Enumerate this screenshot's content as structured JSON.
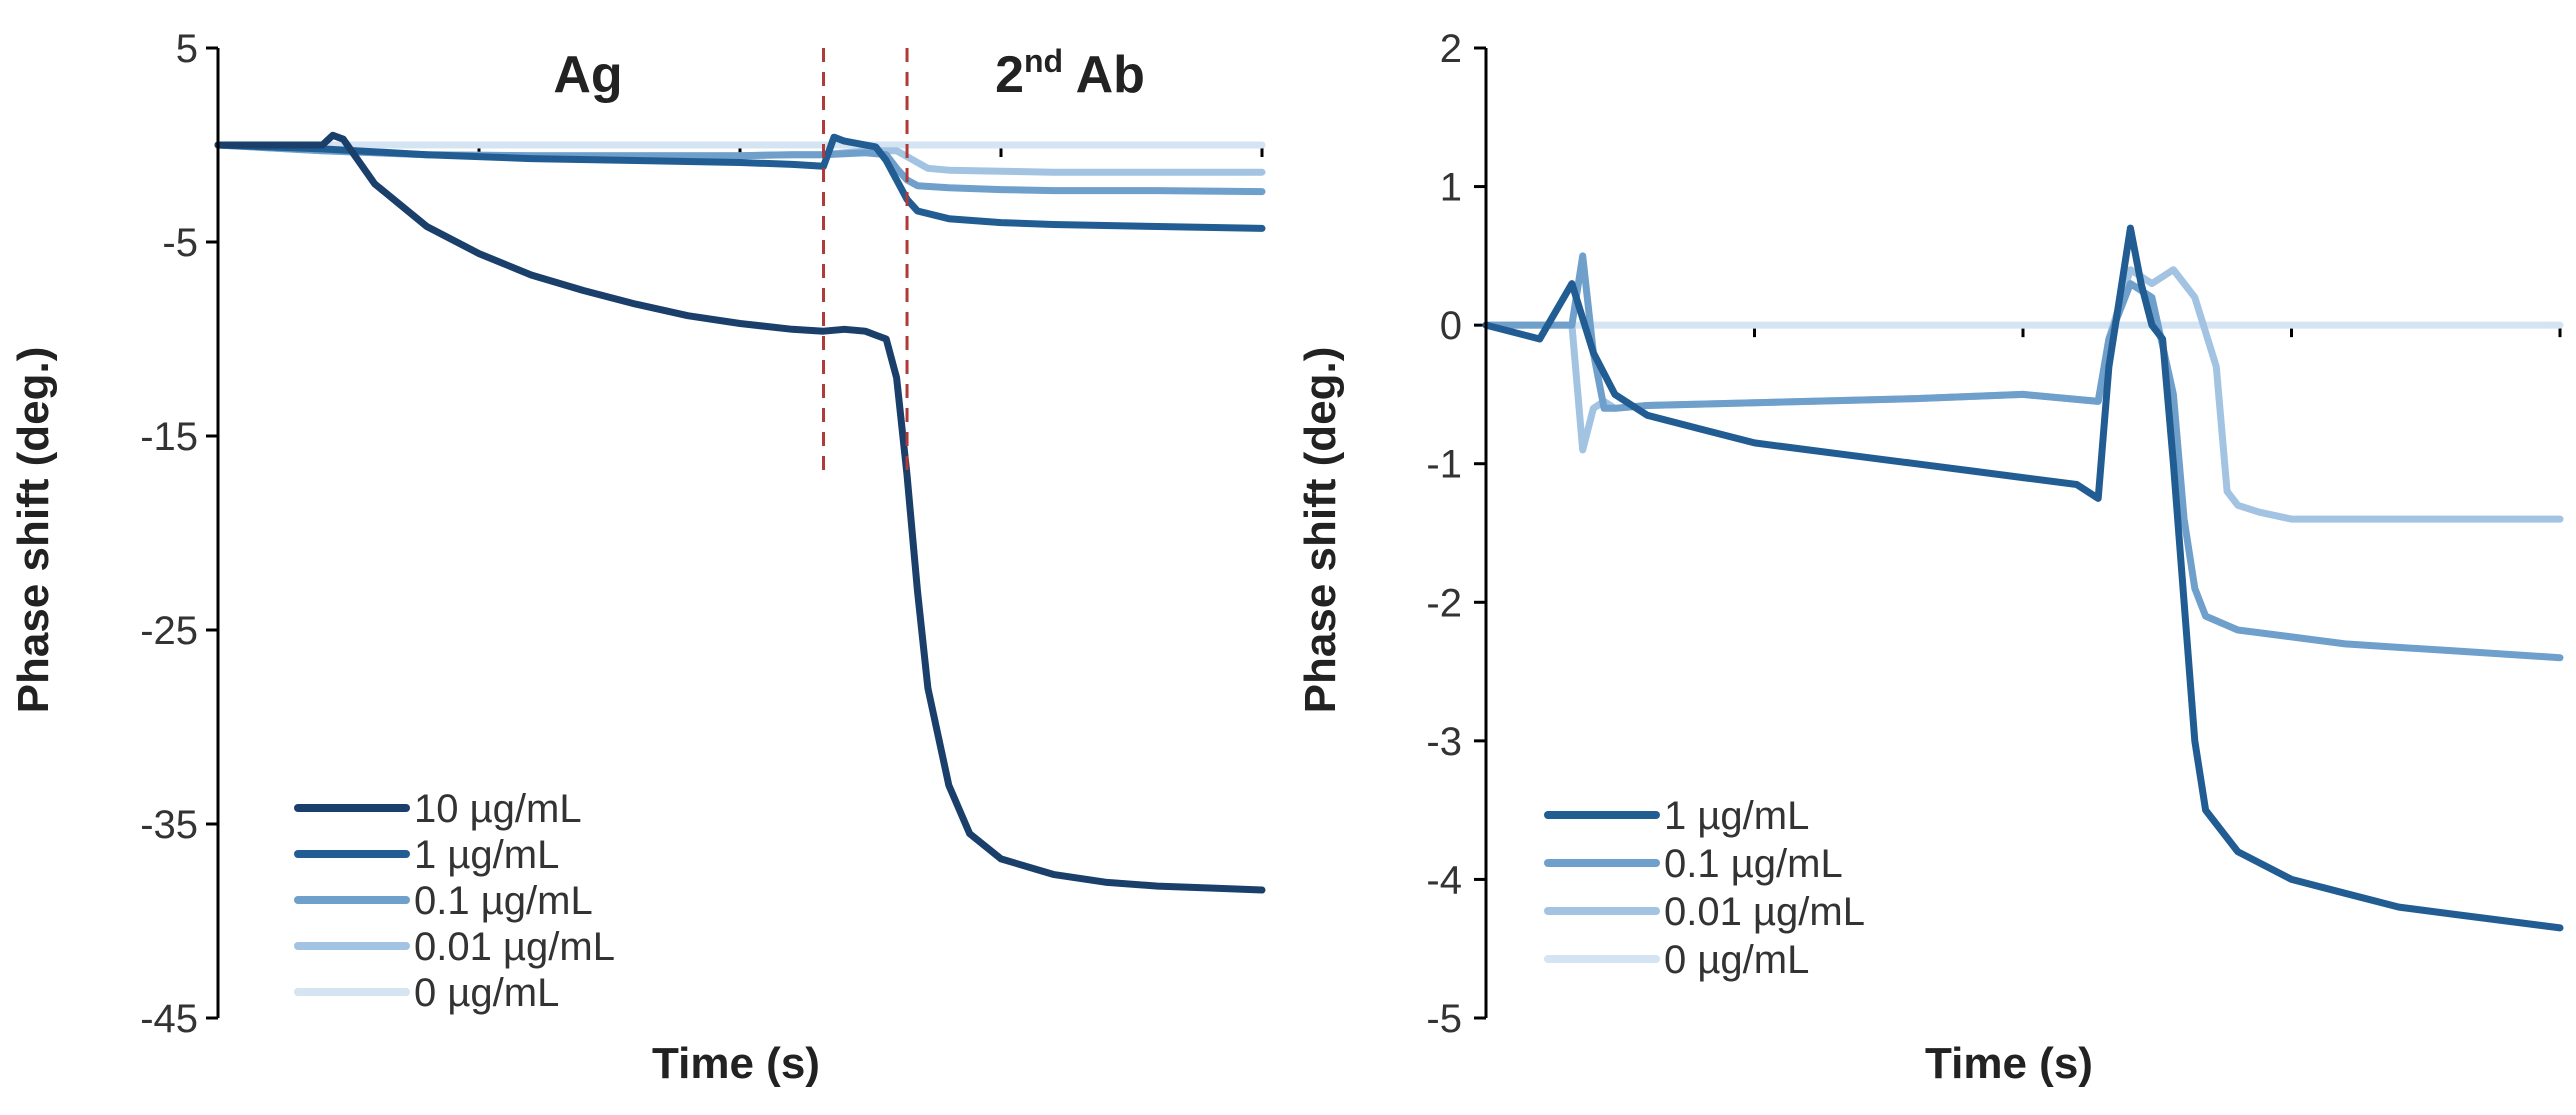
{
  "chart_data": [
    {
      "type": "line",
      "title": "",
      "xlabel": "Time (s)",
      "ylabel": "Phase shift (deg.)",
      "ylim": [
        -45,
        5
      ],
      "yticks": [
        5,
        -5,
        -15,
        -25,
        -35,
        -45
      ],
      "x_axis_at": 0,
      "region_labels": [
        {
          "id": "ag",
          "text": "Ag"
        },
        {
          "id": "ab",
          "text": "2",
          "sup": "nd",
          "suffix": "Ab"
        }
      ],
      "dividers_x": [
        58,
        66
      ],
      "series": [
        {
          "name": "10 µg/mL",
          "color": "#1b3f6b",
          "x": [
            0,
            10,
            11,
            12,
            15,
            20,
            25,
            30,
            35,
            40,
            45,
            50,
            55,
            58,
            60,
            62,
            63,
            64,
            65,
            66,
            67,
            68,
            70,
            72,
            75,
            80,
            85,
            90,
            95,
            100
          ],
          "y": [
            0,
            0,
            0.5,
            0.3,
            -2.0,
            -4.2,
            -5.6,
            -6.7,
            -7.5,
            -8.2,
            -8.8,
            -9.2,
            -9.5,
            -9.6,
            -9.5,
            -9.6,
            -9.8,
            -10,
            -12,
            -17,
            -23,
            -28,
            -33,
            -35.5,
            -36.8,
            -37.6,
            -38,
            -38.2,
            -38.3,
            -38.4
          ]
        },
        {
          "name": "1 µg/mL",
          "color": "#215d92",
          "x": [
            0,
            10,
            20,
            30,
            40,
            50,
            55,
            58,
            59,
            60,
            63,
            64,
            65,
            66,
            67,
            70,
            75,
            80,
            90,
            100
          ],
          "y": [
            0,
            -0.2,
            -0.5,
            -0.7,
            -0.8,
            -0.9,
            -1.0,
            -1.1,
            0.4,
            0.2,
            -0.1,
            -0.8,
            -1.8,
            -2.8,
            -3.4,
            -3.8,
            -4.0,
            -4.1,
            -4.2,
            -4.3
          ]
        },
        {
          "name": "0.1 µg/mL",
          "color": "#6f9fcb",
          "x": [
            0,
            10,
            20,
            30,
            40,
            50,
            55,
            58,
            62,
            64,
            65,
            66,
            67,
            70,
            75,
            80,
            90,
            100
          ],
          "y": [
            0,
            -0.3,
            -0.5,
            -0.55,
            -0.55,
            -0.55,
            -0.5,
            -0.5,
            -0.4,
            -0.5,
            -1.2,
            -1.8,
            -2.1,
            -2.2,
            -2.3,
            -2.35,
            -2.35,
            -2.4
          ]
        },
        {
          "name": "0.01 µg/mL",
          "color": "#a3c3e2",
          "x": [
            0,
            10,
            20,
            30,
            40,
            50,
            55,
            58,
            62,
            65,
            66,
            67,
            68,
            70,
            75,
            80,
            90,
            100
          ],
          "y": [
            0,
            -0.3,
            -0.5,
            -0.55,
            -0.55,
            -0.55,
            -0.5,
            -0.5,
            -0.3,
            -0.3,
            -0.6,
            -0.9,
            -1.2,
            -1.3,
            -1.35,
            -1.4,
            -1.4,
            -1.4
          ]
        },
        {
          "name": "0 µg/mL",
          "color": "#d4e4f2",
          "x": [
            0,
            20,
            40,
            60,
            80,
            100
          ],
          "y": [
            0,
            0,
            0,
            0,
            0,
            0
          ]
        }
      ]
    },
    {
      "type": "line",
      "title": "",
      "xlabel": "Time (s)",
      "ylabel": "Phase shift (deg.)",
      "ylim": [
        -5,
        2
      ],
      "yticks": [
        2,
        1,
        0,
        -1,
        -2,
        -3,
        -4,
        -5
      ],
      "x_axis_at": 0,
      "series": [
        {
          "name": "1 µg/mL",
          "color": "#215d92",
          "x": [
            0,
            5,
            8,
            10,
            12,
            15,
            20,
            25,
            30,
            35,
            40,
            45,
            50,
            55,
            57,
            58,
            59,
            60,
            61,
            62,
            63,
            64,
            65,
            66,
            67,
            70,
            75,
            80,
            85,
            90,
            95,
            100
          ],
          "y": [
            0,
            -0.1,
            0.3,
            -0.2,
            -0.5,
            -0.65,
            -0.75,
            -0.85,
            -0.9,
            -0.95,
            -1.0,
            -1.05,
            -1.1,
            -1.15,
            -1.25,
            -0.3,
            0.2,
            0.7,
            0.3,
            0.0,
            -0.1,
            -1.0,
            -2.0,
            -3.0,
            -3.5,
            -3.8,
            -4.0,
            -4.1,
            -4.2,
            -4.25,
            -4.3,
            -4.35
          ]
        },
        {
          "name": "0.1 µg/mL",
          "color": "#6f9fcb",
          "x": [
            0,
            8,
            9,
            10,
            11,
            12,
            15,
            20,
            30,
            40,
            50,
            57,
            58,
            60,
            62,
            64,
            65,
            66,
            67,
            70,
            75,
            80,
            90,
            100
          ],
          "y": [
            0,
            0,
            0.5,
            -0.2,
            -0.6,
            -0.6,
            -0.58,
            -0.57,
            -0.55,
            -0.53,
            -0.5,
            -0.55,
            -0.1,
            0.3,
            0.2,
            -0.5,
            -1.4,
            -1.9,
            -2.1,
            -2.2,
            -2.25,
            -2.3,
            -2.35,
            -2.4
          ]
        },
        {
          "name": "0.01 µg/mL",
          "color": "#a3c3e2",
          "x": [
            0,
            8,
            9,
            10,
            11,
            12,
            15,
            20,
            30,
            40,
            50,
            57,
            58,
            60,
            62,
            64,
            66,
            68,
            69,
            70,
            72,
            75,
            80,
            90,
            100
          ],
          "y": [
            0,
            0,
            -0.9,
            -0.6,
            -0.55,
            -0.6,
            -0.58,
            -0.57,
            -0.55,
            -0.53,
            -0.5,
            -0.55,
            -0.1,
            0.4,
            0.3,
            0.4,
            0.2,
            -0.3,
            -1.2,
            -1.3,
            -1.35,
            -1.4,
            -1.4,
            -1.4,
            -1.4
          ]
        },
        {
          "name": "0 µg/mL",
          "color": "#d4e4f2",
          "x": [
            0,
            20,
            40,
            60,
            80,
            100
          ],
          "y": [
            0,
            0,
            0,
            0,
            0,
            0
          ]
        }
      ]
    }
  ]
}
